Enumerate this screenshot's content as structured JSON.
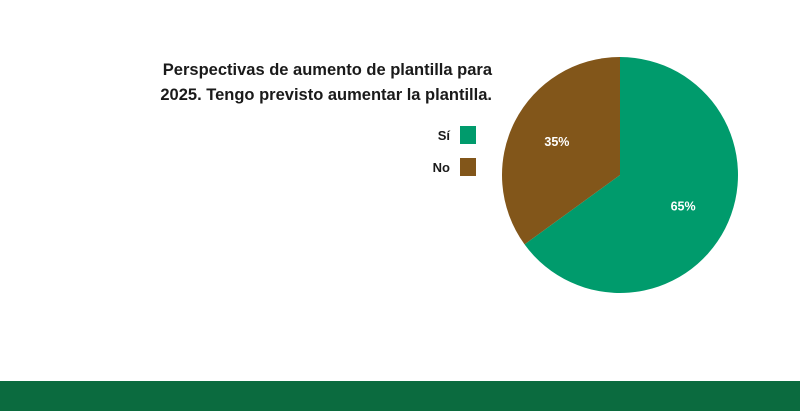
{
  "colors": {
    "footer_band": "#0b6b3f"
  },
  "chart_data": {
    "type": "pie",
    "title_lines": [
      "Perspectivas de aumento de plantilla para",
      "2025. Tengo previsto aumentar la plantilla."
    ],
    "legend_placement": "left",
    "slices": [
      {
        "label": "Sí",
        "value": 65,
        "value_label": "65%",
        "color": "#009b6c"
      },
      {
        "label": "No",
        "value": 35,
        "value_label": "35%",
        "color": "#82561a"
      }
    ]
  }
}
